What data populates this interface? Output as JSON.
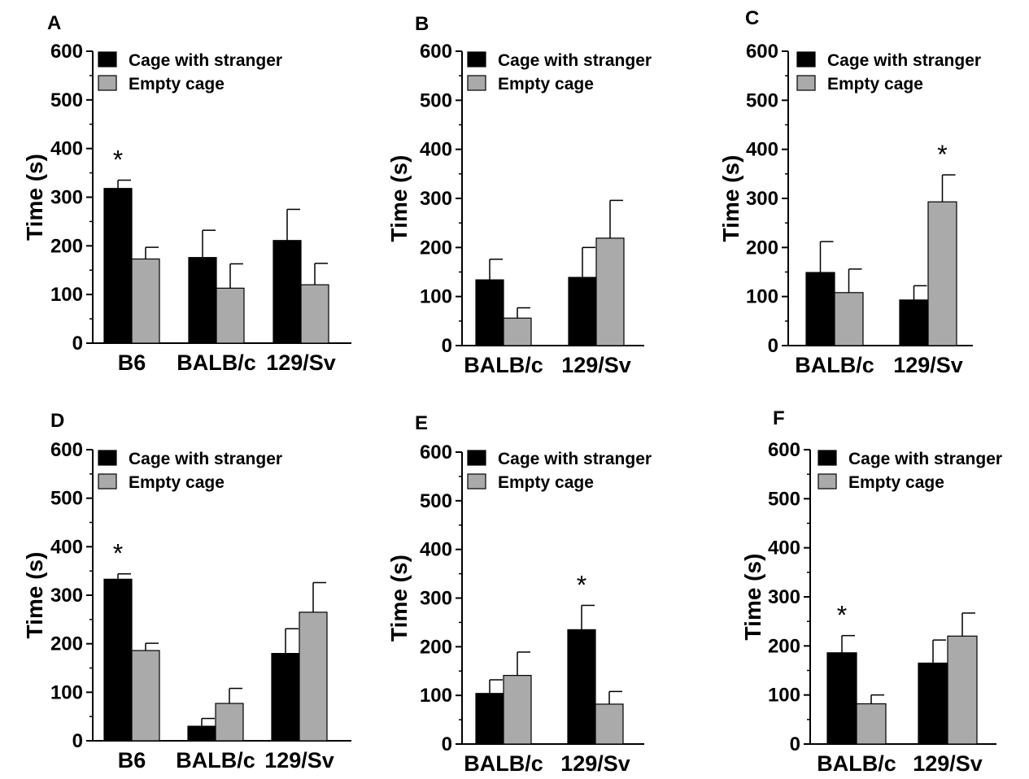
{
  "colors": {
    "stranger": "#000000",
    "empty": "#aaaaaa",
    "axis": "#000000"
  },
  "chart_data": [
    {
      "type": "bar",
      "panel": "A",
      "categories": [
        "B6",
        "BALB/c",
        "129/Sv"
      ],
      "series": [
        {
          "name": "Cage with stranger",
          "values": [
            318,
            176,
            211
          ],
          "errors": [
            17,
            56,
            64
          ]
        },
        {
          "name": "Empty cage",
          "values": [
            173,
            113,
            120
          ],
          "errors": [
            24,
            50,
            44
          ]
        }
      ],
      "significant": [
        0
      ],
      "significance_mark": "*",
      "ylabel": "Time (s)",
      "ylim": [
        0,
        600
      ],
      "yticks": [
        "0",
        "100",
        "200",
        "300",
        "400",
        "500",
        "600"
      ],
      "legend_position": "top-left"
    },
    {
      "type": "bar",
      "panel": "B",
      "categories": [
        "BALB/c",
        "129/Sv"
      ],
      "series": [
        {
          "name": "Cage with stranger",
          "values": [
            134,
            139
          ],
          "errors": [
            42,
            61
          ]
        },
        {
          "name": "Empty cage",
          "values": [
            56,
            219
          ],
          "errors": [
            21,
            77
          ]
        }
      ],
      "significant": [],
      "significance_mark": "",
      "ylabel": "Time (s)",
      "ylim": [
        0,
        600
      ],
      "yticks": [
        "0",
        "100",
        "200",
        "300",
        "400",
        "500",
        "600"
      ],
      "legend_position": "top-left"
    },
    {
      "type": "bar",
      "panel": "C",
      "categories": [
        "BALB/c",
        "129/Sv"
      ],
      "series": [
        {
          "name": "Cage with stranger",
          "values": [
            149,
            93
          ],
          "errors": [
            63,
            29
          ]
        },
        {
          "name": "Empty cage",
          "values": [
            108,
            293
          ],
          "errors": [
            48,
            55
          ]
        }
      ],
      "significant": [
        1
      ],
      "significance_mark": "*",
      "ylabel": "Time (s)",
      "ylim": [
        0,
        600
      ],
      "yticks": [
        "0",
        "100",
        "200",
        "300",
        "400",
        "500",
        "600"
      ],
      "legend_position": "top-left"
    },
    {
      "type": "bar",
      "panel": "D",
      "categories": [
        "B6",
        "BALB/c",
        "129/Sv"
      ],
      "series": [
        {
          "name": "Cage with stranger",
          "values": [
            333,
            30,
            180
          ],
          "errors": [
            11,
            16,
            51
          ]
        },
        {
          "name": "Empty cage",
          "values": [
            186,
            77,
            265
          ],
          "errors": [
            15,
            31,
            61
          ]
        }
      ],
      "significant": [
        0
      ],
      "significance_mark": "*",
      "ylabel": "Time (s)",
      "ylim": [
        0,
        600
      ],
      "yticks": [
        "0",
        "100",
        "200",
        "300",
        "400",
        "500",
        "600"
      ],
      "legend_position": "top-left"
    },
    {
      "type": "bar",
      "panel": "E",
      "categories": [
        "BALB/c",
        "129/Sv"
      ],
      "series": [
        {
          "name": "Cage with stranger",
          "values": [
            104,
            235
          ],
          "errors": [
            28,
            50
          ]
        },
        {
          "name": "Empty cage",
          "values": [
            141,
            82
          ],
          "errors": [
            48,
            26
          ]
        }
      ],
      "significant": [
        1
      ],
      "significance_mark": "*",
      "ylabel": "Time (s)",
      "ylim": [
        0,
        600
      ],
      "yticks": [
        "0",
        "100",
        "200",
        "300",
        "400",
        "500",
        "600"
      ],
      "legend_position": "top-left"
    },
    {
      "type": "bar",
      "panel": "F",
      "categories": [
        "BALB/c",
        "129/Sv"
      ],
      "series": [
        {
          "name": "Cage with stranger",
          "values": [
            186,
            165
          ],
          "errors": [
            35,
            47
          ]
        },
        {
          "name": "Empty cage",
          "values": [
            82,
            220
          ],
          "errors": [
            18,
            47
          ]
        }
      ],
      "significant": [
        0
      ],
      "significance_mark": "*",
      "ylabel": "Time (s)",
      "ylim": [
        0,
        600
      ],
      "yticks": [
        "0",
        "100",
        "200",
        "300",
        "400",
        "500",
        "600"
      ],
      "legend_position": "top-left"
    }
  ]
}
